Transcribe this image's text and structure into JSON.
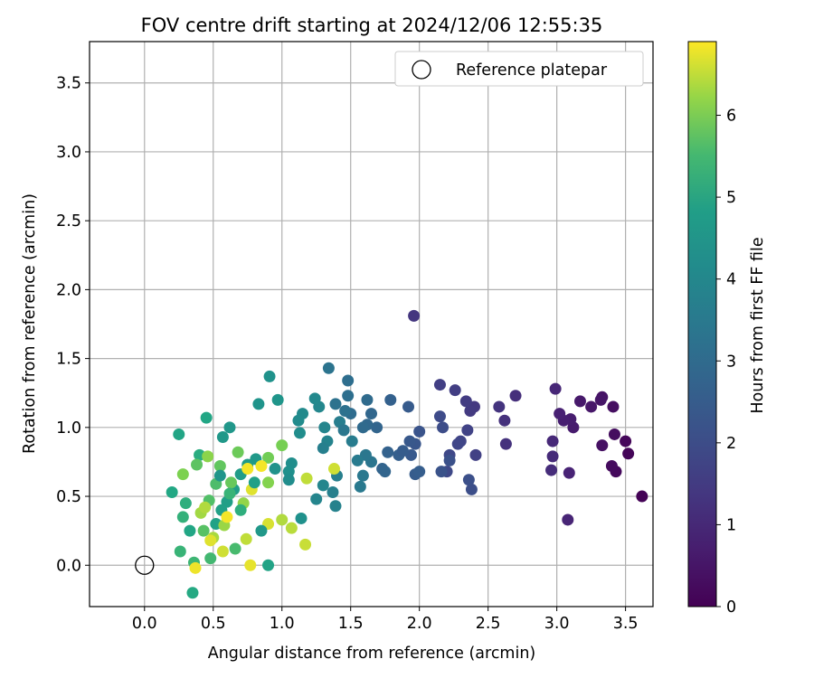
{
  "chart_data": {
    "type": "scatter",
    "title": "FOV centre drift starting at 2024/12/06 12:55:35",
    "xlabel": "Angular distance from reference (arcmin)",
    "ylabel": "Rotation from reference (arcmin)",
    "xlim": [
      -0.4,
      3.7
    ],
    "ylim": [
      -0.3,
      3.8
    ],
    "xticks": [
      0.0,
      0.5,
      1.0,
      1.5,
      2.0,
      2.5,
      3.0,
      3.5
    ],
    "xtick_labels": [
      "0.0",
      "0.5",
      "1.0",
      "1.5",
      "2.0",
      "2.5",
      "3.0",
      "3.5"
    ],
    "yticks": [
      0.0,
      0.5,
      1.0,
      1.5,
      2.0,
      2.5,
      3.0,
      3.5
    ],
    "ytick_labels": [
      "0.0",
      "0.5",
      "1.0",
      "1.5",
      "2.0",
      "2.5",
      "3.0",
      "3.5"
    ],
    "grid": true,
    "legend": {
      "placement": "top-right",
      "label": "Reference platepar"
    },
    "reference_point": {
      "x": 0.0,
      "y": 0.0
    },
    "colorbar": {
      "label": "Hours from first FF file",
      "colormap": "viridis",
      "range": [
        0,
        6.9
      ],
      "ticks": [
        0,
        1,
        2,
        3,
        4,
        5,
        6
      ],
      "tick_labels": [
        "0",
        "1",
        "2",
        "3",
        "4",
        "5",
        "6"
      ]
    },
    "points": [
      {
        "x": 3.62,
        "y": 0.5,
        "h": 0.05
      },
      {
        "x": 3.52,
        "y": 0.81,
        "h": 0.1
      },
      {
        "x": 3.5,
        "y": 0.9,
        "h": 0.15
      },
      {
        "x": 3.43,
        "y": 0.68,
        "h": 0.2
      },
      {
        "x": 3.4,
        "y": 0.72,
        "h": 0.25
      },
      {
        "x": 3.42,
        "y": 0.95,
        "h": 0.3
      },
      {
        "x": 3.41,
        "y": 1.15,
        "h": 0.35
      },
      {
        "x": 3.33,
        "y": 0.87,
        "h": 0.4
      },
      {
        "x": 3.33,
        "y": 1.22,
        "h": 0.45
      },
      {
        "x": 3.32,
        "y": 1.2,
        "h": 0.5
      },
      {
        "x": 3.25,
        "y": 1.15,
        "h": 0.55
      },
      {
        "x": 3.17,
        "y": 1.19,
        "h": 0.6
      },
      {
        "x": 3.12,
        "y": 1.0,
        "h": 0.65
      },
      {
        "x": 3.1,
        "y": 1.06,
        "h": 0.7
      },
      {
        "x": 3.05,
        "y": 1.05,
        "h": 0.75
      },
      {
        "x": 3.02,
        "y": 1.1,
        "h": 0.8
      },
      {
        "x": 3.09,
        "y": 0.67,
        "h": 0.85
      },
      {
        "x": 3.08,
        "y": 0.33,
        "h": 0.9
      },
      {
        "x": 2.99,
        "y": 1.28,
        "h": 0.95
      },
      {
        "x": 2.97,
        "y": 0.9,
        "h": 1.0
      },
      {
        "x": 2.97,
        "y": 0.79,
        "h": 1.05
      },
      {
        "x": 2.96,
        "y": 0.69,
        "h": 1.1
      },
      {
        "x": 2.7,
        "y": 1.23,
        "h": 1.15
      },
      {
        "x": 2.62,
        "y": 1.05,
        "h": 1.2
      },
      {
        "x": 2.63,
        "y": 0.88,
        "h": 1.25
      },
      {
        "x": 2.58,
        "y": 1.15,
        "h": 1.3
      },
      {
        "x": 1.96,
        "y": 1.81,
        "h": 1.35
      },
      {
        "x": 2.4,
        "y": 1.15,
        "h": 1.4
      },
      {
        "x": 2.37,
        "y": 1.12,
        "h": 1.45
      },
      {
        "x": 2.34,
        "y": 1.19,
        "h": 1.5
      },
      {
        "x": 2.26,
        "y": 1.27,
        "h": 1.55
      },
      {
        "x": 2.15,
        "y": 1.31,
        "h": 1.6
      },
      {
        "x": 2.41,
        "y": 0.8,
        "h": 1.65
      },
      {
        "x": 2.35,
        "y": 0.98,
        "h": 1.7
      },
      {
        "x": 2.3,
        "y": 0.9,
        "h": 1.75
      },
      {
        "x": 2.28,
        "y": 0.88,
        "h": 1.8
      },
      {
        "x": 2.22,
        "y": 0.8,
        "h": 1.85
      },
      {
        "x": 2.2,
        "y": 0.68,
        "h": 1.9
      },
      {
        "x": 2.15,
        "y": 1.08,
        "h": 1.95
      },
      {
        "x": 2.17,
        "y": 1.0,
        "h": 2.0
      },
      {
        "x": 2.38,
        "y": 0.55,
        "h": 2.05
      },
      {
        "x": 2.36,
        "y": 0.62,
        "h": 2.1
      },
      {
        "x": 2.22,
        "y": 0.76,
        "h": 2.15
      },
      {
        "x": 2.16,
        "y": 0.68,
        "h": 2.2
      },
      {
        "x": 2.0,
        "y": 0.97,
        "h": 2.25
      },
      {
        "x": 1.97,
        "y": 0.88,
        "h": 2.3
      },
      {
        "x": 1.93,
        "y": 0.9,
        "h": 2.35
      },
      {
        "x": 1.94,
        "y": 0.8,
        "h": 2.4
      },
      {
        "x": 1.92,
        "y": 1.15,
        "h": 2.45
      },
      {
        "x": 1.97,
        "y": 0.66,
        "h": 2.5
      },
      {
        "x": 2.0,
        "y": 0.68,
        "h": 2.55
      },
      {
        "x": 1.85,
        "y": 0.8,
        "h": 2.6
      },
      {
        "x": 1.79,
        "y": 1.2,
        "h": 2.65
      },
      {
        "x": 1.77,
        "y": 0.82,
        "h": 2.7
      },
      {
        "x": 1.73,
        "y": 0.7,
        "h": 2.75
      },
      {
        "x": 1.69,
        "y": 1.0,
        "h": 2.8
      },
      {
        "x": 1.65,
        "y": 1.1,
        "h": 2.85
      },
      {
        "x": 1.62,
        "y": 1.02,
        "h": 2.9
      },
      {
        "x": 1.59,
        "y": 1.0,
        "h": 2.95
      },
      {
        "x": 1.62,
        "y": 1.2,
        "h": 3.0
      },
      {
        "x": 1.5,
        "y": 1.1,
        "h": 3.05
      },
      {
        "x": 1.48,
        "y": 1.34,
        "h": 3.1
      },
      {
        "x": 1.48,
        "y": 1.23,
        "h": 3.15
      },
      {
        "x": 1.46,
        "y": 1.12,
        "h": 3.2
      },
      {
        "x": 1.39,
        "y": 1.17,
        "h": 3.25
      },
      {
        "x": 1.34,
        "y": 1.43,
        "h": 3.3
      },
      {
        "x": 1.65,
        "y": 0.75,
        "h": 3.35
      },
      {
        "x": 1.61,
        "y": 0.8,
        "h": 3.4
      },
      {
        "x": 1.59,
        "y": 0.65,
        "h": 3.45
      },
      {
        "x": 1.57,
        "y": 0.57,
        "h": 3.5
      },
      {
        "x": 1.55,
        "y": 0.76,
        "h": 3.55
      },
      {
        "x": 1.51,
        "y": 0.9,
        "h": 3.6
      },
      {
        "x": 1.42,
        "y": 1.04,
        "h": 3.65
      },
      {
        "x": 1.4,
        "y": 0.65,
        "h": 3.7
      },
      {
        "x": 1.37,
        "y": 0.53,
        "h": 3.75
      },
      {
        "x": 1.39,
        "y": 0.43,
        "h": 3.8
      },
      {
        "x": 1.33,
        "y": 0.9,
        "h": 3.85
      },
      {
        "x": 1.31,
        "y": 1.0,
        "h": 3.9
      },
      {
        "x": 1.3,
        "y": 0.58,
        "h": 3.95
      },
      {
        "x": 1.27,
        "y": 1.15,
        "h": 4.0
      },
      {
        "x": 1.24,
        "y": 1.21,
        "h": 4.05
      },
      {
        "x": 1.15,
        "y": 1.1,
        "h": 4.1
      },
      {
        "x": 1.12,
        "y": 1.05,
        "h": 4.15
      },
      {
        "x": 1.13,
        "y": 0.96,
        "h": 4.2
      },
      {
        "x": 1.07,
        "y": 0.74,
        "h": 4.25
      },
      {
        "x": 1.05,
        "y": 0.68,
        "h": 4.3
      },
      {
        "x": 1.14,
        "y": 0.34,
        "h": 4.35
      },
      {
        "x": 0.91,
        "y": 1.37,
        "h": 4.4
      },
      {
        "x": 0.83,
        "y": 1.17,
        "h": 4.45
      },
      {
        "x": 0.97,
        "y": 1.2,
        "h": 4.5
      },
      {
        "x": 0.62,
        "y": 1.0,
        "h": 4.55
      },
      {
        "x": 0.57,
        "y": 0.93,
        "h": 4.6
      },
      {
        "x": 0.81,
        "y": 0.77,
        "h": 4.65
      },
      {
        "x": 0.75,
        "y": 0.73,
        "h": 4.7
      },
      {
        "x": 0.7,
        "y": 0.66,
        "h": 4.75
      },
      {
        "x": 0.65,
        "y": 0.55,
        "h": 4.8
      },
      {
        "x": 0.6,
        "y": 0.46,
        "h": 4.85
      },
      {
        "x": 0.56,
        "y": 0.4,
        "h": 4.9
      },
      {
        "x": 0.52,
        "y": 0.3,
        "h": 4.95
      },
      {
        "x": 0.9,
        "y": 0.0,
        "h": 5.0
      },
      {
        "x": 0.25,
        "y": 0.95,
        "h": 5.05
      },
      {
        "x": 0.45,
        "y": 1.07,
        "h": 5.1
      },
      {
        "x": 0.2,
        "y": 0.53,
        "h": 5.15
      },
      {
        "x": 0.35,
        "y": -0.2,
        "h": 5.2
      },
      {
        "x": 0.4,
        "y": 0.8,
        "h": 5.25
      },
      {
        "x": 0.3,
        "y": 0.45,
        "h": 5.3
      },
      {
        "x": 0.28,
        "y": 0.35,
        "h": 5.35
      },
      {
        "x": 0.26,
        "y": 0.1,
        "h": 5.4
      },
      {
        "x": 0.36,
        "y": 0.02,
        "h": 5.45
      },
      {
        "x": 0.48,
        "y": 0.05,
        "h": 5.5
      },
      {
        "x": 0.66,
        "y": 0.12,
        "h": 5.55
      },
      {
        "x": 0.52,
        "y": 0.59,
        "h": 5.6
      },
      {
        "x": 0.47,
        "y": 0.47,
        "h": 5.65
      },
      {
        "x": 0.43,
        "y": 0.25,
        "h": 5.7
      },
      {
        "x": 0.38,
        "y": 0.73,
        "h": 5.75
      },
      {
        "x": 0.55,
        "y": 0.72,
        "h": 5.8
      },
      {
        "x": 0.63,
        "y": 0.6,
        "h": 5.85
      },
      {
        "x": 0.68,
        "y": 0.82,
        "h": 5.9
      },
      {
        "x": 0.9,
        "y": 0.78,
        "h": 5.95
      },
      {
        "x": 1.0,
        "y": 0.87,
        "h": 6.0
      },
      {
        "x": 0.28,
        "y": 0.66,
        "h": 6.05
      },
      {
        "x": 0.9,
        "y": 0.6,
        "h": 6.1
      },
      {
        "x": 0.46,
        "y": 0.79,
        "h": 6.15
      },
      {
        "x": 0.72,
        "y": 0.45,
        "h": 6.2
      },
      {
        "x": 0.58,
        "y": 0.29,
        "h": 6.25
      },
      {
        "x": 0.41,
        "y": 0.38,
        "h": 6.3
      },
      {
        "x": 0.5,
        "y": 0.2,
        "h": 6.35
      },
      {
        "x": 1.0,
        "y": 0.33,
        "h": 6.4
      },
      {
        "x": 1.07,
        "y": 0.27,
        "h": 6.45
      },
      {
        "x": 1.18,
        "y": 0.63,
        "h": 6.5
      },
      {
        "x": 1.17,
        "y": 0.15,
        "h": 6.55
      },
      {
        "x": 1.38,
        "y": 0.7,
        "h": 6.6
      },
      {
        "x": 0.9,
        "y": 0.3,
        "h": 6.65
      },
      {
        "x": 0.78,
        "y": 0.55,
        "h": 6.7
      },
      {
        "x": 0.77,
        "y": 0.0,
        "h": 6.75
      },
      {
        "x": 0.37,
        "y": -0.02,
        "h": 6.8
      },
      {
        "x": 0.75,
        "y": 0.7,
        "h": 6.85
      },
      {
        "x": 0.6,
        "y": 0.35,
        "h": 6.85
      },
      {
        "x": 0.85,
        "y": 0.72,
        "h": 6.85
      },
      {
        "x": 0.48,
        "y": 0.18,
        "h": 6.7
      },
      {
        "x": 0.57,
        "y": 0.1,
        "h": 6.6
      },
      {
        "x": 0.74,
        "y": 0.19,
        "h": 6.5
      },
      {
        "x": 0.44,
        "y": 0.42,
        "h": 6.4
      },
      {
        "x": 0.62,
        "y": 0.52,
        "h": 5.4
      },
      {
        "x": 0.7,
        "y": 0.4,
        "h": 5.3
      },
      {
        "x": 0.8,
        "y": 0.6,
        "h": 4.9
      },
      {
        "x": 0.33,
        "y": 0.25,
        "h": 5.1
      },
      {
        "x": 0.85,
        "y": 0.25,
        "h": 4.6
      },
      {
        "x": 0.55,
        "y": 0.65,
        "h": 4.5
      },
      {
        "x": 0.95,
        "y": 0.7,
        "h": 4.4
      },
      {
        "x": 1.05,
        "y": 0.62,
        "h": 4.2
      },
      {
        "x": 1.25,
        "y": 0.48,
        "h": 3.9
      },
      {
        "x": 1.3,
        "y": 0.85,
        "h": 3.7
      },
      {
        "x": 1.45,
        "y": 0.98,
        "h": 3.4
      },
      {
        "x": 1.75,
        "y": 0.68,
        "h": 2.8
      },
      {
        "x": 1.88,
        "y": 0.83,
        "h": 2.5
      }
    ]
  }
}
